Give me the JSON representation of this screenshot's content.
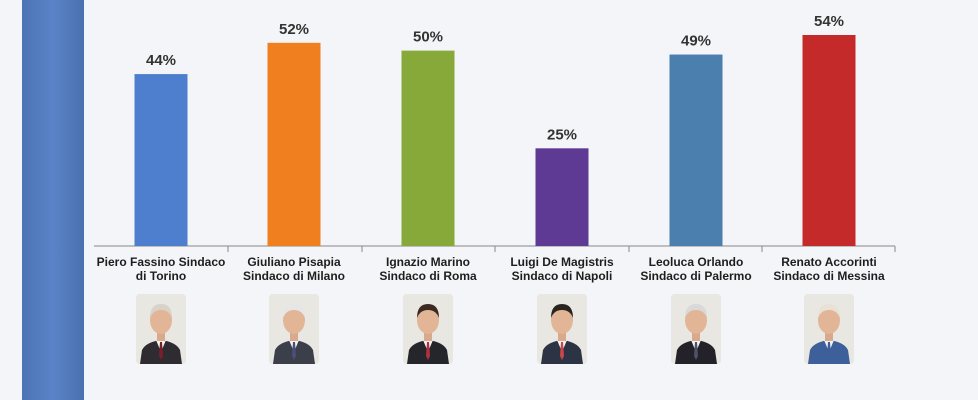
{
  "chart_data": {
    "type": "bar",
    "categories": [
      "Piero Fassino Sindaco di Torino",
      "Giuliano Pisapia Sindaco di Milano",
      "Ignazio Marino Sindaco di Roma",
      "Luigi De Magistris Sindaco di Napoli",
      "Leoluca Orlando Sindaco di Palermo",
      "Renato Accorinti Sindaco di Messina"
    ],
    "values": [
      44,
      52,
      50,
      25,
      49,
      54
    ],
    "value_labels": [
      "44%",
      "52%",
      "50%",
      "25%",
      "49%",
      "54%"
    ],
    "colors": [
      "#4e7fcf",
      "#f07f1f",
      "#86a93a",
      "#5e3a94",
      "#4a7fae",
      "#c42a2a"
    ],
    "ylim": [
      0,
      60
    ],
    "grid": false,
    "legend": "none"
  },
  "candidates": [
    {
      "line1": "Piero Fassino Sindaco",
      "line2": "di Torino",
      "photo": "portrait-photo",
      "hair": "#d8d2c8",
      "suit": "#2e2c30",
      "tie": "#7a1f2a"
    },
    {
      "line1": "Giuliano Pisapia",
      "line2": "Sindaco di Milano",
      "photo": "portrait-photo",
      "hair": "#e6e6e6",
      "suit": "#3a3f4a",
      "tie": "#4a4f7a"
    },
    {
      "line1": "Ignazio Marino",
      "line2": "Sindaco di Roma",
      "photo": "portrait-photo",
      "hair": "#3a2a22",
      "suit": "#25262c",
      "tie": "#b03040"
    },
    {
      "line1": "Luigi De Magistris",
      "line2": "Sindaco di Napoli",
      "photo": "portrait-photo",
      "hair": "#2a2420",
      "suit": "#2c3344",
      "tie": "#c8484a"
    },
    {
      "line1": "Leoluca Orlando",
      "line2": "Sindaco di Palermo",
      "photo": "portrait-photo",
      "hair": "#d9d9d9",
      "suit": "#222228",
      "tie": "#50506a"
    },
    {
      "line1": "Renato Accorinti",
      "line2": "Sindaco di Messina",
      "photo": "portrait-photo",
      "hair": "#e8e2d6",
      "suit": "#3d5f9a",
      "tie": "#3d5f9a"
    }
  ]
}
